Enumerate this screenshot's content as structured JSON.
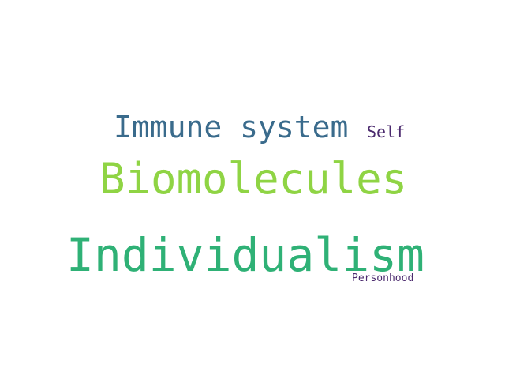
{
  "word_cloud": {
    "words": [
      {
        "text": "Immune system",
        "color": "#3a6b8c"
      },
      {
        "text": "Self",
        "color": "#4b2a6e"
      },
      {
        "text": "Biomolecules",
        "color": "#8fd444"
      },
      {
        "text": "Individualism",
        "color": "#2fb176"
      },
      {
        "text": "Personhood",
        "color": "#4b2a6e"
      }
    ]
  }
}
